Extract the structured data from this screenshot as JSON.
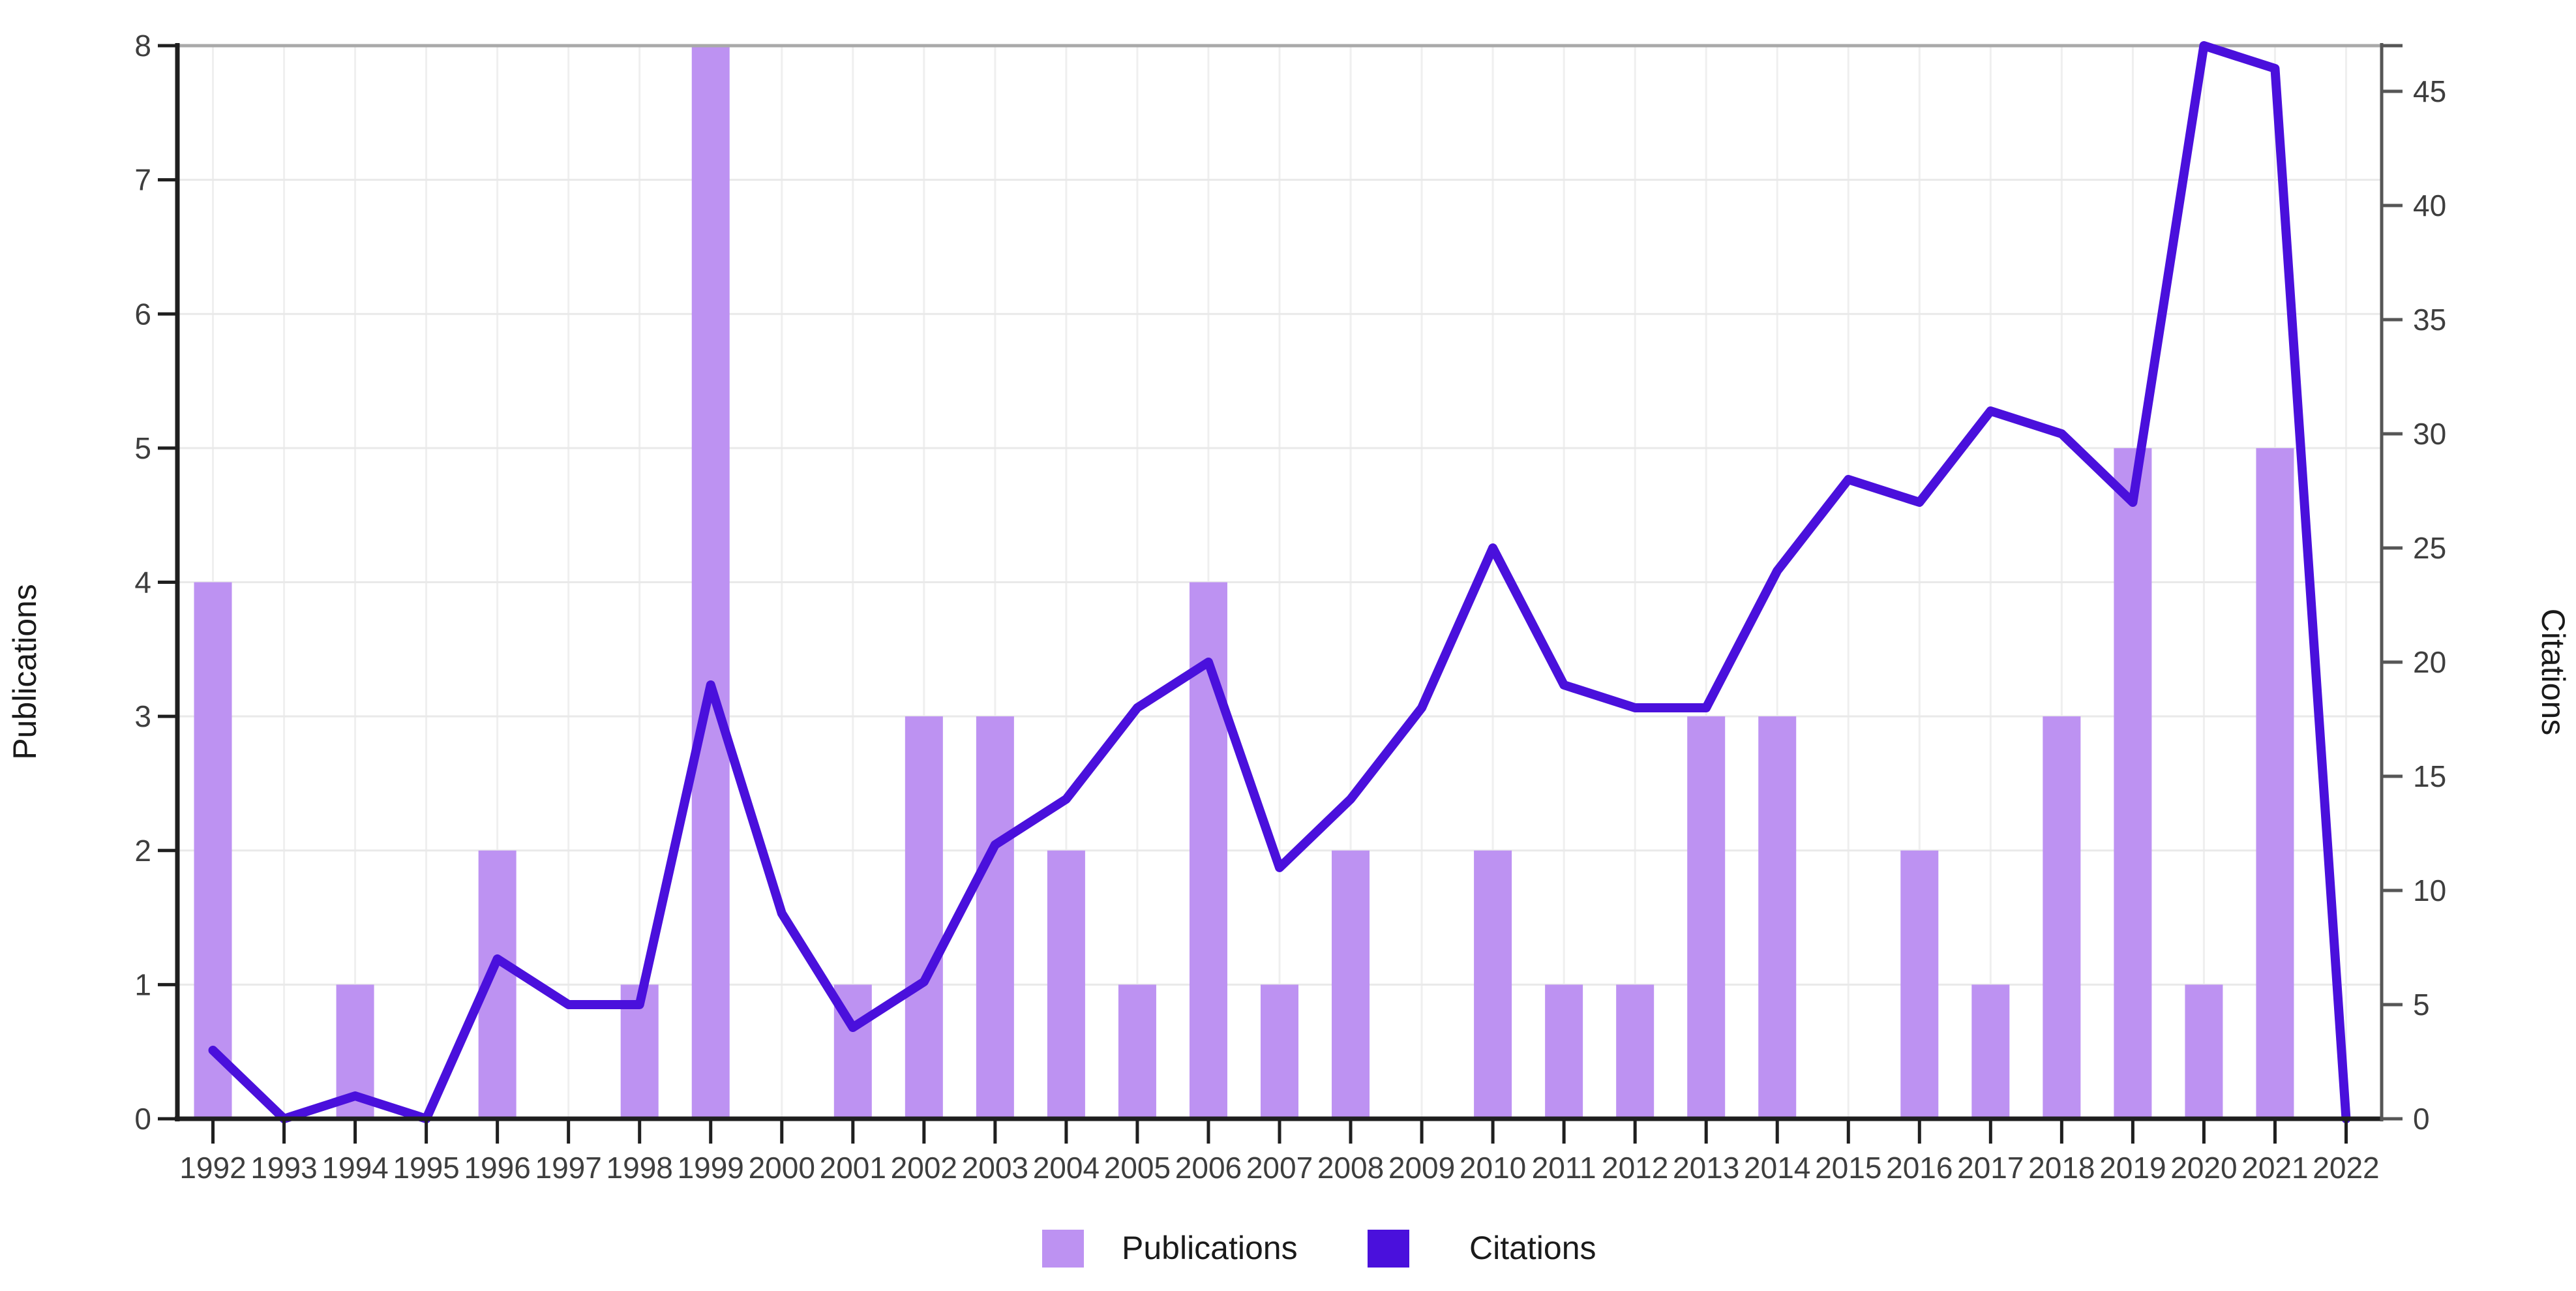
{
  "chart_data": {
    "type": "combo",
    "title": "",
    "categories": [
      "1992",
      "1993",
      "1994",
      "1995",
      "1996",
      "1997",
      "1998",
      "1999",
      "2000",
      "2001",
      "2002",
      "2003",
      "2004",
      "2005",
      "2006",
      "2007",
      "2008",
      "2009",
      "2010",
      "2011",
      "2012",
      "2013",
      "2014",
      "2015",
      "2016",
      "2017",
      "2018",
      "2019",
      "2020",
      "2021",
      "2022"
    ],
    "series": [
      {
        "name": "Publications",
        "type": "bar",
        "axis": "left",
        "color": "#bd92f2",
        "values": [
          4,
          0,
          1,
          0,
          2,
          0,
          1,
          8,
          0,
          1,
          3,
          3,
          2,
          1,
          4,
          1,
          2,
          0,
          2,
          1,
          1,
          3,
          3,
          0,
          2,
          1,
          3,
          5,
          1,
          5,
          0
        ]
      },
      {
        "name": "Citations",
        "type": "line",
        "axis": "right",
        "color": "#4a10dc",
        "values": [
          3,
          0,
          1,
          0,
          7,
          5,
          5,
          19,
          9,
          4,
          6,
          12,
          14,
          18,
          20,
          11,
          14,
          18,
          25,
          19,
          18,
          18,
          24,
          28,
          27,
          31,
          30,
          27,
          47,
          46,
          0
        ]
      }
    ],
    "left_axis": {
      "label": "Publications",
      "min": 0,
      "max": 8,
      "ticks": [
        0,
        1,
        2,
        3,
        4,
        5,
        6,
        7,
        8
      ]
    },
    "right_axis": {
      "label": "Citations",
      "min": 0,
      "max": 47,
      "ticks": [
        0,
        5,
        10,
        15,
        20,
        25,
        30,
        35,
        40,
        45
      ]
    },
    "legend": {
      "position": "bottom",
      "entries": [
        "Publications",
        "Citations"
      ]
    },
    "grid": true
  },
  "colors": {
    "bar": "#bd92f2",
    "line": "#4a10dc",
    "grid_horizontal": "#e9e9e9",
    "grid_vertical": "#efefef",
    "spine": "#1f1f1f",
    "right_spine": "#565656",
    "top_frame": "#a9a9a9",
    "tick_label": "#3e3e3e",
    "axis_title": "#1a1a1a",
    "legend_text": "#1a1a1a",
    "background": "#ffffff"
  }
}
